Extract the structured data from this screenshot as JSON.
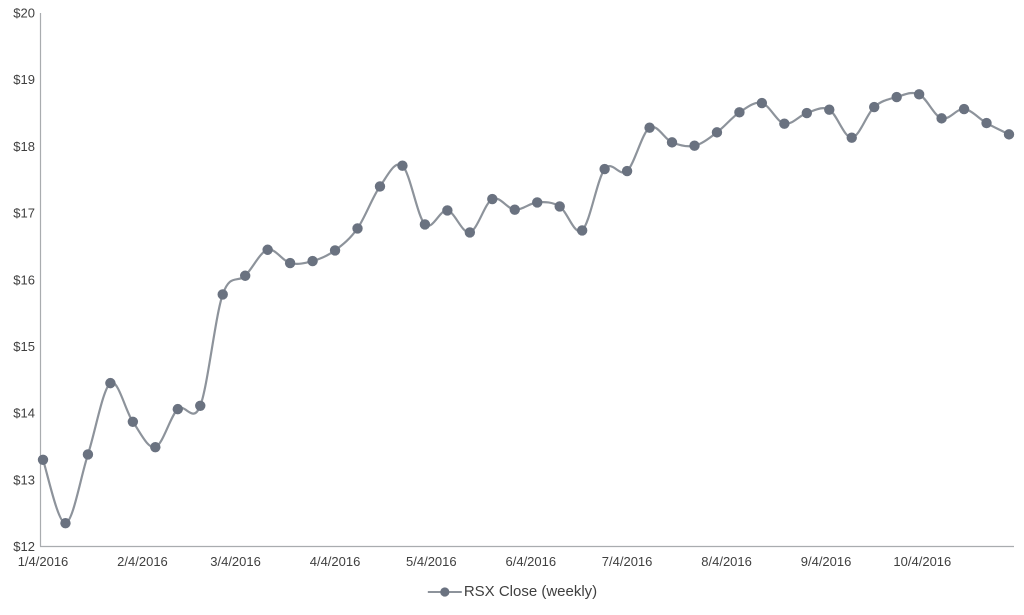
{
  "page": {
    "background_color": "#ffffff"
  },
  "chart_data": {
    "type": "line",
    "title": "",
    "xlabel": "",
    "ylabel": "",
    "series": [
      {
        "name": "RSX Close (weekly)",
        "values": [
          13.3,
          12.35,
          13.38,
          14.45,
          13.87,
          13.49,
          14.06,
          14.11,
          15.78,
          16.06,
          16.45,
          16.25,
          16.28,
          16.44,
          16.77,
          17.4,
          17.71,
          16.83,
          17.04,
          16.71,
          17.21,
          17.05,
          17.16,
          17.1,
          16.74,
          17.66,
          17.63,
          18.28,
          18.06,
          18.01,
          18.21,
          18.51,
          18.65,
          18.34,
          18.5,
          18.55,
          18.13,
          18.59,
          18.74,
          18.78,
          18.42,
          18.56,
          18.35,
          18.18
        ],
        "line_color": "#8D939B",
        "marker_color": "#6A7280",
        "marker_shape": "circle",
        "smoothed": true
      }
    ],
    "x_tick_labels": [
      "1/4/2016",
      "2/4/2016",
      "3/4/2016",
      "4/4/2016",
      "5/4/2016",
      "6/4/2016",
      "7/4/2016",
      "8/4/2016",
      "9/4/2016",
      "10/4/2016"
    ],
    "y_tick_labels": [
      "$12",
      "$13",
      "$14",
      "$15",
      "$16",
      "$17",
      "$18",
      "$19",
      "$20"
    ],
    "ylim": [
      12,
      20
    ],
    "y_tick_step": 1,
    "grid": false,
    "legend_position": "bottom-center",
    "colors": {
      "axis_line": "#A9ACAF",
      "tick_text": "#3F3F3F",
      "legend_text": "#3F3F3F"
    }
  },
  "legend": {
    "label": "RSX Close (weekly)"
  }
}
